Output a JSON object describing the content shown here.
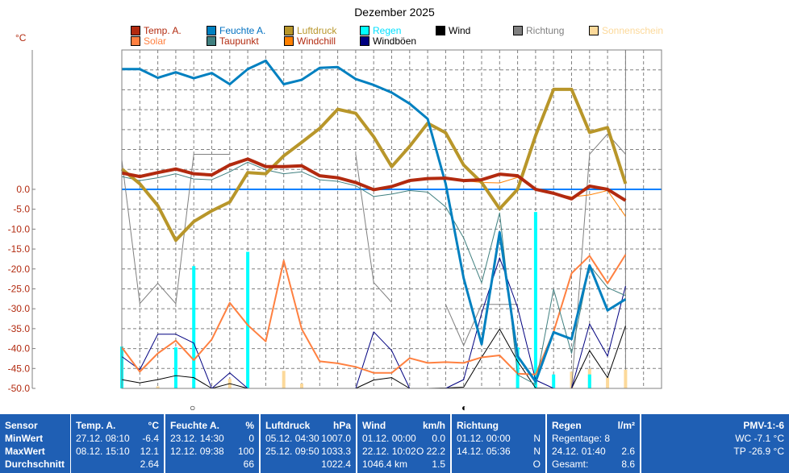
{
  "chart_data": {
    "type": "line",
    "title": "Dezember 2025",
    "ylabel": "°C",
    "ylim": [
      -50,
      35
    ],
    "yticks": [
      "0.0",
      "-5.0",
      "-10.0",
      "-15.0",
      "-20.0",
      "-25.0",
      "-30.0",
      "-35.0",
      "-40.0",
      "-45.0",
      "-50.0"
    ],
    "x_days": 31,
    "cursor_day": 29,
    "grid": true,
    "zero_line_color": "#0080ff",
    "legend": [
      {
        "label": "Temp. A.",
        "box": "#b22a0f",
        "text": "#b22a0f"
      },
      {
        "label": "Feuchte A.",
        "box": "#0080c0",
        "text": "#0070c0"
      },
      {
        "label": "Luftdruck",
        "box": "#b8962a",
        "text": "#b8962a"
      },
      {
        "label": "Regen",
        "box": "#00ffff",
        "text": "#00e0ff"
      },
      {
        "label": "Wind",
        "box": "#000000",
        "text": "#000000"
      },
      {
        "label": "Richtung",
        "box": "#808080",
        "text": "#808080"
      },
      {
        "label": "Sonnenschein",
        "box": "#fcd99a",
        "text": "#fcd99a"
      },
      {
        "label": "Solar",
        "box": "#ff8040",
        "text": "#ff8040"
      },
      {
        "label": "Taupunkt",
        "box": "#408080",
        "text": "#b22a0f"
      },
      {
        "label": "Windchill",
        "box": "#ff8000",
        "text": "#b22a0f"
      },
      {
        "label": "Windböen",
        "box": "#000080",
        "text": "#000000"
      }
    ],
    "bars": [
      {
        "name": "Sonnenschein",
        "color": "#fcd99a",
        "values": {
          "2": -49.5,
          "3": -49.5,
          "6": -47.6,
          "9": -45.6,
          "10": -48.8,
          "25": -45.8,
          "26": -45.1,
          "27": -47.3,
          "28": -45.3
        }
      },
      {
        "name": "Regen",
        "color": "#00ffff",
        "values": {
          "0": -39.5,
          "3": -39.7,
          "4": -19.3,
          "7": -15.7,
          "22": -39.7,
          "23": -5.7,
          "24": -46.5,
          "26": -46.5
        }
      }
    ],
    "series": [
      {
        "name": "Richtung",
        "color": "#808080",
        "width": 1,
        "values": [
          7.4,
          -28.7,
          -23.6,
          -28.7,
          8.8,
          8.8,
          8.8,
          null,
          null,
          null,
          null,
          null,
          null,
          8.8,
          -23.4,
          -28.4,
          null,
          null,
          -28.9,
          -39.2,
          -28.9,
          -28.9,
          -28.9,
          null,
          null,
          -50,
          8.8,
          13.9,
          8.8
        ]
      },
      {
        "name": "Wind",
        "color": "#000000",
        "width": 1,
        "values": [
          -47.8,
          -48.6,
          -47.8,
          -46.8,
          -47.3,
          -50,
          -48.8,
          -50,
          -50,
          -50,
          -50,
          -50,
          -50,
          -50,
          -47.9,
          -47.3,
          -50,
          -50,
          -49.9,
          -49.7,
          -42.2,
          -35.1,
          -43.2,
          -49.9,
          -50,
          -50,
          -40.5,
          -47.3,
          -34.3
        ]
      },
      {
        "name": "Windböen",
        "color": "#000080",
        "width": 1,
        "values": [
          -42.0,
          -45.3,
          -36.4,
          -36.4,
          -38.6,
          -50,
          -46.1,
          -50,
          -50,
          -50,
          -50,
          -50,
          -50,
          -50,
          -35.8,
          -40.5,
          -50,
          -50,
          -50,
          -47.8,
          -31.1,
          -17.2,
          -29.7,
          -47.9,
          -50,
          -50,
          -33.8,
          -41.9,
          -24.3
        ]
      },
      {
        "name": "Solar",
        "color": "#ff8040",
        "width": 2,
        "values": [
          -39.7,
          -45.8,
          -41.2,
          -38.0,
          -42.9,
          -37.7,
          -28.5,
          -34.1,
          -38.2,
          -17.9,
          -35.1,
          -43.2,
          -43.7,
          -44.6,
          -46.1,
          -46.1,
          -42.4,
          -43.6,
          -43.4,
          -43.6,
          -42.2,
          -41.7,
          -46.3,
          -46.5,
          -35.8,
          -21.1,
          -16.7,
          -23.6,
          -16.4
        ]
      },
      {
        "name": "Taupunkt",
        "color": "#408080",
        "width": 1,
        "values": [
          3.2,
          2.2,
          2.9,
          3.9,
          2.6,
          2.4,
          4.4,
          6.8,
          4.9,
          3.9,
          4.4,
          2.4,
          2.0,
          0.9,
          -1.8,
          -1.2,
          -0.3,
          -0.7,
          -4.4,
          -12.2,
          -23.5,
          -5.9,
          -46.6,
          -49.0,
          -25.1,
          -41.2,
          -19.1,
          -24.7,
          -26.7
        ]
      },
      {
        "name": "Windchill",
        "color": "#ff8000",
        "width": 1,
        "values": [
          4.1,
          3.2,
          4.2,
          5.1,
          3.9,
          3.6,
          6.1,
          7.6,
          5.7,
          5.7,
          5.9,
          3.4,
          2.9,
          1.7,
          -0.1,
          0.7,
          2.2,
          2.7,
          2.8,
          2.2,
          1.7,
          1.6,
          3.0,
          0,
          -1.0,
          -1.9,
          -1.4,
          -0.3,
          -6.8
        ]
      },
      {
        "name": "Luftdruck",
        "color": "#b8962a",
        "width": 4,
        "values": [
          5.1,
          1.4,
          -4.1,
          -12.8,
          -8.1,
          -5.4,
          -3.2,
          4.2,
          3.9,
          8.4,
          11.8,
          15.3,
          20.1,
          19.1,
          13.2,
          5.7,
          10.8,
          16.6,
          14.2,
          6.1,
          1.7,
          -4.9,
          0,
          13.5,
          25.1,
          25.1,
          14.3,
          15.5,
          1.4
        ]
      },
      {
        "name": "Feuchte A.",
        "color": "#0080c0",
        "width": 3,
        "values": [
          30.2,
          30.2,
          28.0,
          29.4,
          27.9,
          29.2,
          26.4,
          30.2,
          32.3,
          26.4,
          27.5,
          30.5,
          30.7,
          27.7,
          26.2,
          24.3,
          21.5,
          17.7,
          1.4,
          -22.3,
          -38.9,
          -10.8,
          -41.9,
          -48.3,
          -35.9,
          -37.6,
          -19.1,
          -30.4,
          -27.6
        ]
      },
      {
        "name": "Temp. A.",
        "color": "#b22a0f",
        "width": 4,
        "values": [
          4.1,
          3.2,
          4.2,
          5.1,
          3.9,
          3.6,
          6.1,
          7.6,
          5.7,
          5.7,
          5.9,
          3.4,
          2.9,
          1.7,
          -0.1,
          0.7,
          2.2,
          2.7,
          2.8,
          2.2,
          2.4,
          3.8,
          3.4,
          0,
          -1.0,
          -2.4,
          0.8,
          0,
          -2.8
        ]
      }
    ]
  },
  "moon_icons": [
    "full-moon-icon",
    "half-moon-icon"
  ],
  "moon_glyphs": [
    "○",
    "◐"
  ],
  "table": {
    "sensor": {
      "header": "Sensor",
      "rows": [
        "MinWert",
        "MaxWert",
        "Durchschnitt"
      ]
    },
    "columns": [
      {
        "title": "Temp. A.",
        "unit": "°C",
        "rows": [
          [
            "27.12.  08:10",
            "-6.4"
          ],
          [
            "08.12.  15:10",
            "12.1"
          ],
          [
            "",
            "2.64"
          ]
        ]
      },
      {
        "title": "Feuchte A.",
        "unit": "%",
        "rows": [
          [
            "23.12.  14:30",
            "0"
          ],
          [
            "12.12.  09:38",
            "100"
          ],
          [
            "",
            "66"
          ]
        ]
      },
      {
        "title": "Luftdruck",
        "unit": "hPa",
        "rows": [
          [
            "05.12.  04:30",
            "1007.0"
          ],
          [
            "25.12.  09:50",
            "1033.3"
          ],
          [
            "",
            "1022.4"
          ]
        ]
      },
      {
        "title": "Wind",
        "unit": "km/h",
        "rows": [
          [
            "01.12.  00:00",
            "0.0"
          ],
          [
            "22.12.  10:02",
            "O 22.2"
          ],
          [
            "1046.4 km",
            "1.5"
          ]
        ]
      },
      {
        "title": "Richtung",
        "unit": "",
        "rows": [
          [
            "01.12.  00:00",
            "N"
          ],
          [
            "14.12.  05:36",
            "N"
          ],
          [
            "",
            "O"
          ]
        ]
      },
      {
        "title": "Regen",
        "unit": "l/m²",
        "rows": [
          [
            "Regentage: 8",
            ""
          ],
          [
            "24.12.  01:40",
            "2.6"
          ],
          [
            "Gesamt:",
            "8.6"
          ]
        ]
      }
    ],
    "pmv": {
      "title": "PMV-1:-6",
      "rows": [
        "WC -7.1 °C",
        "TP -26.9 °C"
      ]
    }
  }
}
